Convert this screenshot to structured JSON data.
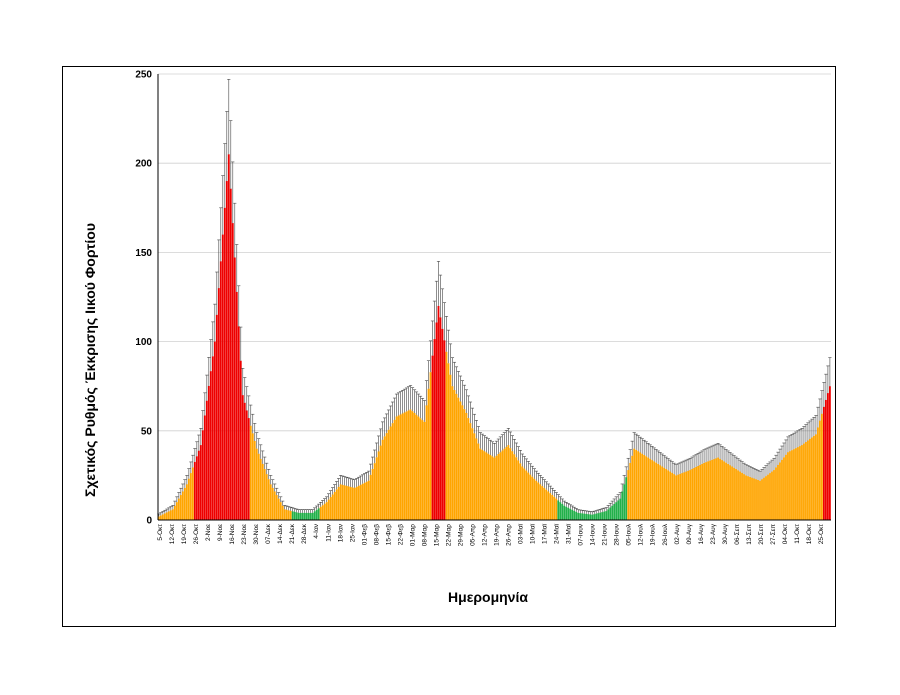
{
  "chart_data": {
    "type": "bar",
    "ylabel": "Σχετικός Ρυθμός Έκκρισης Ιικού Φορτίου",
    "xlabel": "Ημερομηνία",
    "ylim": [
      0,
      250
    ],
    "yticks": [
      0,
      50,
      100,
      150,
      200,
      250
    ],
    "grid": true,
    "error_bars": true,
    "colors": {
      "high": "#ee0000",
      "medium": "#ffa500",
      "low": "#22b04a",
      "error": "#444444",
      "grid": "#d0d0d0"
    },
    "tick_labels": [
      "5-Οκτ",
      "12-Οκτ",
      "19-Οκτ",
      "26-Οκτ",
      "2-Νοε",
      "9-Νοε",
      "16-Νοε",
      "23-Νοε",
      "30-Νοε",
      "07-Δεκ",
      "14-Δεκ",
      "21-Δεκ",
      "28-Δεκ",
      "4-Ιαν",
      "11-Ιαν",
      "18-Ιαν",
      "25-Ιαν",
      "01-Φεβ",
      "08-Φεβ",
      "15-Φεβ",
      "22-Φεβ",
      "01-Μαρ",
      "08-Μαρ",
      "15-Μαρ",
      "22-Μαρ",
      "29-Μαρ",
      "05-Απρ",
      "12-Απρ",
      "19-Απρ",
      "26-Απρ",
      "03-Μαϊ",
      "10-Μαϊ",
      "17-Μαϊ",
      "24-Μαϊ",
      "31-Μαϊ",
      "07-Ιουν",
      "14-Ιουν",
      "21-Ιουν",
      "28-Ιουν",
      "05-Ιουλ",
      "12-Ιουλ",
      "19-Ιουλ",
      "26-Ιουλ",
      "02-Αυγ",
      "09-Αυγ",
      "16-Αυγ",
      "23-Αυγ",
      "30-Αυγ",
      "06-Σεπ",
      "13-Σεπ",
      "20-Σεπ",
      "27-Σεπ",
      "04-Οκτ",
      "11-Οκτ",
      "18-Οκτ",
      "25-Οκτ"
    ],
    "weekly_anchors": [
      {
        "w": 0,
        "v": 2,
        "c": "medium"
      },
      {
        "w": 1,
        "v": 6,
        "c": "medium"
      },
      {
        "w": 2,
        "v": 20,
        "c": "medium"
      },
      {
        "w": 3,
        "v": 42,
        "c": "high"
      },
      {
        "w": 4,
        "v": 100,
        "c": "high"
      },
      {
        "w": 5,
        "v": 205,
        "c": "high"
      },
      {
        "w": 6,
        "v": 70,
        "c": "high"
      },
      {
        "w": 7,
        "v": 40,
        "c": "medium"
      },
      {
        "w": 8,
        "v": 20,
        "c": "medium"
      },
      {
        "w": 9,
        "v": 6,
        "c": "medium"
      },
      {
        "w": 10,
        "v": 4,
        "c": "low"
      },
      {
        "w": 11,
        "v": 4,
        "c": "low"
      },
      {
        "w": 12,
        "v": 10,
        "c": "medium"
      },
      {
        "w": 13,
        "v": 20,
        "c": "medium"
      },
      {
        "w": 14,
        "v": 18,
        "c": "medium"
      },
      {
        "w": 15,
        "v": 22,
        "c": "medium"
      },
      {
        "w": 16,
        "v": 45,
        "c": "medium"
      },
      {
        "w": 17,
        "v": 58,
        "c": "medium"
      },
      {
        "w": 18,
        "v": 62,
        "c": "medium"
      },
      {
        "w": 19,
        "v": 55,
        "c": "medium"
      },
      {
        "w": 20,
        "v": 120,
        "c": "high"
      },
      {
        "w": 21,
        "v": 75,
        "c": "medium"
      },
      {
        "w": 22,
        "v": 60,
        "c": "medium"
      },
      {
        "w": 23,
        "v": 40,
        "c": "medium"
      },
      {
        "w": 24,
        "v": 35,
        "c": "medium"
      },
      {
        "w": 25,
        "v": 42,
        "c": "medium"
      },
      {
        "w": 26,
        "v": 30,
        "c": "medium"
      },
      {
        "w": 27,
        "v": 22,
        "c": "medium"
      },
      {
        "w": 28,
        "v": 15,
        "c": "medium"
      },
      {
        "w": 29,
        "v": 8,
        "c": "low"
      },
      {
        "w": 30,
        "v": 4,
        "c": "low"
      },
      {
        "w": 31,
        "v": 3,
        "c": "low"
      },
      {
        "w": 32,
        "v": 5,
        "c": "low"
      },
      {
        "w": 33,
        "v": 12,
        "c": "low"
      },
      {
        "w": 34,
        "v": 40,
        "c": "medium"
      },
      {
        "w": 35,
        "v": 35,
        "c": "medium"
      },
      {
        "w": 36,
        "v": 30,
        "c": "medium"
      },
      {
        "w": 37,
        "v": 25,
        "c": "medium"
      },
      {
        "w": 38,
        "v": 28,
        "c": "medium"
      },
      {
        "w": 39,
        "v": 32,
        "c": "medium"
      },
      {
        "w": 40,
        "v": 35,
        "c": "medium"
      },
      {
        "w": 41,
        "v": 30,
        "c": "medium"
      },
      {
        "w": 42,
        "v": 25,
        "c": "medium"
      },
      {
        "w": 43,
        "v": 22,
        "c": "medium"
      },
      {
        "w": 44,
        "v": 28,
        "c": "medium"
      },
      {
        "w": 45,
        "v": 38,
        "c": "medium"
      },
      {
        "w": 46,
        "v": 42,
        "c": "medium"
      },
      {
        "w": 47,
        "v": 48,
        "c": "medium"
      },
      {
        "w": 48,
        "v": 75,
        "c": "high"
      }
    ]
  }
}
